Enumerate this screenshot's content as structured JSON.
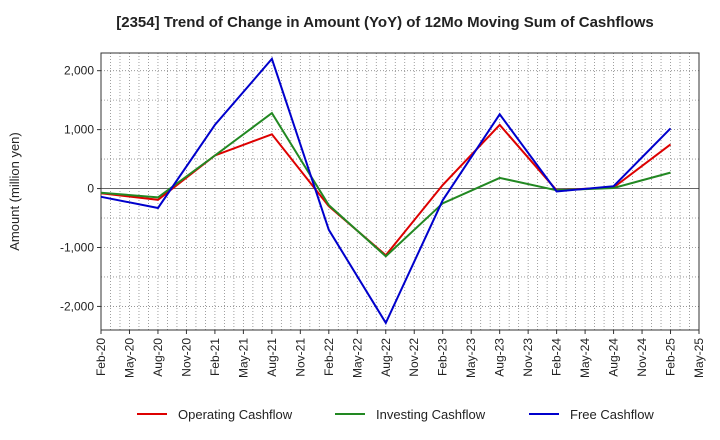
{
  "chart_data": {
    "type": "line",
    "title": "[2354]  Trend of Change in Amount (YoY) of 12Mo Moving Sum of Cashflows",
    "xlabel": "",
    "ylabel": "Amount (million yen)",
    "ylim": [
      -2400,
      2300
    ],
    "yticks": [
      2000,
      1000,
      0,
      -1000,
      -2000
    ],
    "ytick_labels": [
      "2,000",
      "1,000",
      "0",
      "-1,000",
      "-2,000"
    ],
    "categories": [
      "Feb-20",
      "May-20",
      "Aug-20",
      "Nov-20",
      "Feb-21",
      "May-21",
      "Aug-21",
      "Nov-21",
      "Feb-22",
      "May-22",
      "Aug-22",
      "Nov-22",
      "Feb-23",
      "May-23",
      "Aug-23",
      "Nov-23",
      "Feb-24",
      "May-24",
      "Aug-24",
      "Nov-24",
      "Feb-25",
      "May-25"
    ],
    "grid": true,
    "legend_position": "bottom",
    "series": [
      {
        "name": "Operating Cashflow",
        "color": "#dd0000",
        "points": [
          [
            0,
            -80
          ],
          [
            2,
            -190
          ],
          [
            4,
            560
          ],
          [
            6,
            920
          ],
          [
            8,
            -300
          ],
          [
            10,
            -1130
          ],
          [
            12,
            60
          ],
          [
            14,
            1080
          ],
          [
            16,
            -30
          ],
          [
            18,
            20
          ],
          [
            20,
            750
          ]
        ]
      },
      {
        "name": "Investing Cashflow",
        "color": "#228822",
        "points": [
          [
            0,
            -70
          ],
          [
            2,
            -150
          ],
          [
            4,
            560
          ],
          [
            6,
            1280
          ],
          [
            8,
            -280
          ],
          [
            10,
            -1150
          ],
          [
            12,
            -250
          ],
          [
            14,
            180
          ],
          [
            16,
            -30
          ],
          [
            18,
            10
          ],
          [
            20,
            270
          ]
        ]
      },
      {
        "name": "Free Cashflow",
        "color": "#0000cc",
        "points": [
          [
            0,
            -140
          ],
          [
            2,
            -330
          ],
          [
            4,
            1080
          ],
          [
            6,
            2200
          ],
          [
            8,
            -700
          ],
          [
            10,
            -2280
          ],
          [
            12,
            -200
          ],
          [
            14,
            1260
          ],
          [
            16,
            -50
          ],
          [
            18,
            40
          ],
          [
            20,
            1020
          ]
        ]
      }
    ]
  }
}
